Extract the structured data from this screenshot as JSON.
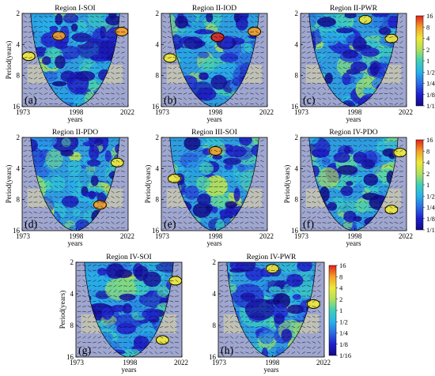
{
  "figure_type": "wavelet coherence",
  "chart_data": [
    {
      "type": "heatmap",
      "panel_label": "(a)",
      "title": "Region I-SOI",
      "ylabel": "Period(years)",
      "xlabel": "years",
      "x_ticks": [
        "1973",
        "1998",
        "2022"
      ],
      "y_ticks": [
        "2",
        "4",
        "8",
        "16"
      ],
      "xlim": [
        1973,
        2022
      ],
      "ylim": [
        2,
        16
      ],
      "y_scale": "log2",
      "y_reversed": true,
      "features": [
        {
          "kind": "significant-contour",
          "x": 1990,
          "y": 3.3,
          "magnitude": 8
        },
        {
          "kind": "significant-contour",
          "x": 2019,
          "y": 3.0,
          "magnitude": 8
        },
        {
          "kind": "significant-contour",
          "x": 1976,
          "y": 5.2,
          "magnitude": 4
        }
      ]
    },
    {
      "type": "heatmap",
      "panel_label": "(b)",
      "title": "Region II-IOD",
      "ylabel": "",
      "xlabel": "years",
      "x_ticks": [
        "1973",
        "1998",
        "2022"
      ],
      "y_ticks": [
        "2",
        "4",
        "8",
        "16"
      ],
      "xlim": [
        1973,
        2022
      ],
      "ylim": [
        2,
        16
      ],
      "y_scale": "log2",
      "y_reversed": true,
      "features": [
        {
          "kind": "significant-contour",
          "x": 1999,
          "y": 3.4,
          "magnitude": 16
        },
        {
          "kind": "significant-contour",
          "x": 2016,
          "y": 3.0,
          "magnitude": 8
        },
        {
          "kind": "significant-contour",
          "x": 1977,
          "y": 5.4,
          "magnitude": 4
        }
      ]
    },
    {
      "type": "heatmap",
      "panel_label": "(c)",
      "title": "Region II-PWR",
      "ylabel": "",
      "xlabel": "years",
      "x_ticks": [
        "1973",
        "1998",
        "2022"
      ],
      "y_ticks": [
        "2",
        "4",
        "8",
        "16"
      ],
      "xlim": [
        1973,
        2022
      ],
      "ylim": [
        2,
        16
      ],
      "y_scale": "log2",
      "y_reversed": true,
      "features": [
        {
          "kind": "significant-contour",
          "x": 2003,
          "y": 2.3,
          "magnitude": 4
        },
        {
          "kind": "significant-contour",
          "x": 2015,
          "y": 3.5,
          "magnitude": 4
        }
      ]
    },
    {
      "type": "heatmap",
      "panel_label": "(d)",
      "title": "Region II-PDO",
      "ylabel": "Period(years)",
      "xlabel": "years",
      "x_ticks": [
        "1973",
        "1998",
        "2022"
      ],
      "y_ticks": [
        "2",
        "4",
        "8",
        "16"
      ],
      "xlim": [
        1973,
        2022
      ],
      "ylim": [
        2,
        16
      ],
      "y_scale": "log2",
      "y_reversed": true,
      "features": [
        {
          "kind": "significant-contour",
          "x": 2009,
          "y": 9.0,
          "magnitude": 8
        },
        {
          "kind": "significant-contour",
          "x": 2017,
          "y": 3.5,
          "magnitude": 4
        }
      ]
    },
    {
      "type": "heatmap",
      "panel_label": "(e)",
      "title": "Region III-SOI",
      "ylabel": "Period(years)",
      "xlabel": "years",
      "x_ticks": [
        "1973",
        "1998",
        "2022"
      ],
      "y_ticks": [
        "2",
        "4",
        "8",
        "16"
      ],
      "xlim": [
        1973,
        2022
      ],
      "ylim": [
        2,
        16
      ],
      "y_scale": "log2",
      "y_reversed": true,
      "features": [
        {
          "kind": "significant-contour",
          "x": 1998,
          "y": 2.7,
          "magnitude": 8
        },
        {
          "kind": "significant-contour",
          "x": 1979,
          "y": 5.0,
          "magnitude": 4
        }
      ]
    },
    {
      "type": "heatmap",
      "panel_label": "(f)",
      "title": "Region IV-PDO",
      "ylabel": "Period(years)",
      "xlabel": "years",
      "x_ticks": [
        "1973",
        "1998",
        "2022"
      ],
      "y_ticks": [
        "2",
        "4",
        "8",
        "16"
      ],
      "xlim": [
        1973,
        2022
      ],
      "ylim": [
        2,
        16
      ],
      "y_scale": "log2",
      "y_reversed": true,
      "features": [
        {
          "kind": "significant-contour",
          "x": 2015,
          "y": 10.0,
          "magnitude": 4
        },
        {
          "kind": "significant-contour",
          "x": 2019,
          "y": 2.8,
          "magnitude": 4
        }
      ]
    },
    {
      "type": "heatmap",
      "panel_label": "(g)",
      "title": "Region IV-SOI",
      "ylabel": "Period(years)",
      "xlabel": "years",
      "x_ticks": [
        "1973",
        "1998",
        "2022"
      ],
      "y_ticks": [
        "2",
        "4",
        "8",
        "16"
      ],
      "xlim": [
        1973,
        2022
      ],
      "ylim": [
        2,
        16
      ],
      "y_scale": "log2",
      "y_reversed": true,
      "features": [
        {
          "kind": "significant-contour",
          "x": 2013,
          "y": 11.0,
          "magnitude": 4
        },
        {
          "kind": "significant-contour",
          "x": 2019,
          "y": 3.0,
          "magnitude": 4
        }
      ]
    },
    {
      "type": "heatmap",
      "panel_label": "(h)",
      "title": "Region IV-PWR",
      "ylabel": "",
      "xlabel": "years",
      "x_ticks": [
        "1973",
        "1998",
        "2022"
      ],
      "y_ticks": [
        "2",
        "4",
        "8",
        "16"
      ],
      "xlim": [
        1973,
        2022
      ],
      "ylim": [
        2,
        16
      ],
      "y_scale": "log2",
      "y_reversed": true,
      "features": [
        {
          "kind": "significant-contour",
          "x": 1998,
          "y": 2.3,
          "magnitude": 4
        },
        {
          "kind": "significant-contour",
          "x": 2017,
          "y": 5.0,
          "magnitude": 4
        }
      ]
    }
  ],
  "colorbar": {
    "tick_labels": [
      "16",
      "8",
      "4",
      "2",
      "1",
      "1/2",
      "1/4",
      "1/8",
      "1/16"
    ],
    "colors": [
      "#e3201c",
      "#f4a028",
      "#ede93a",
      "#b2e05a",
      "#3fcfb8",
      "#27b3ea",
      "#2b6be4",
      "#1f1fcd",
      "#120a86"
    ]
  },
  "background_colors": {
    "cone": "#9fa6cf",
    "cone_yellow": "#d8d6a2"
  }
}
